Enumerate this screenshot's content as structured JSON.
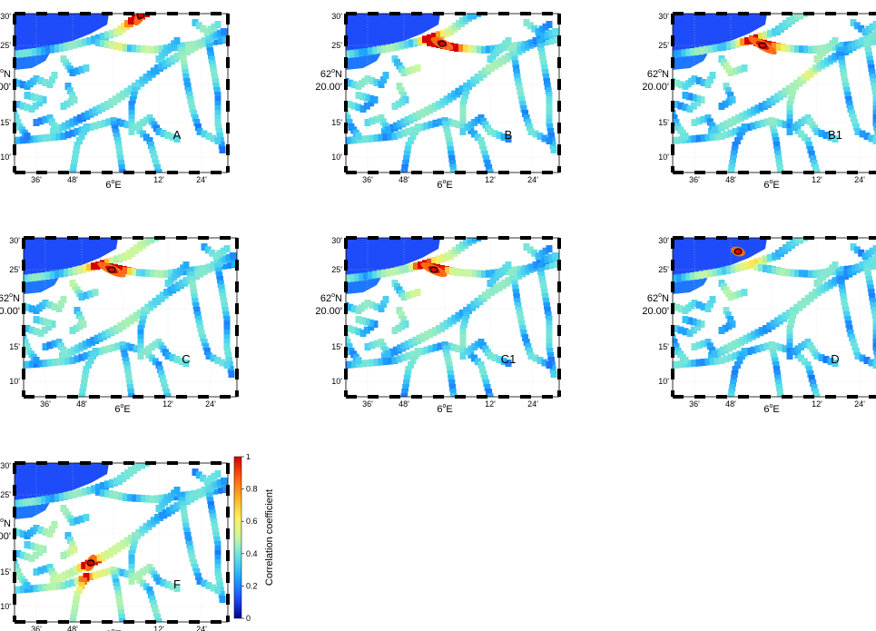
{
  "colorbar": {
    "label": "Correlation coefficient",
    "ticks": [
      "0",
      "0.2",
      "0.4",
      "0.6",
      "0.8",
      "1"
    ],
    "range": [
      0,
      1
    ],
    "colormap": "jet",
    "colors": [
      "#00008b",
      "#1f4fff",
      "#1ea7ff",
      "#5fe0e8",
      "#c9f7a0",
      "#ffef5a",
      "#ffb020",
      "#ff5a10",
      "#d40000"
    ]
  },
  "map": {
    "lat_ticks": [
      "30'",
      "25'",
      "15'",
      "10'"
    ],
    "lat_center_deg": "62",
    "lat_center_suffix": "N",
    "lat_center_min": "20.00'",
    "lon_ticks": [
      "36'",
      "48'",
      "12'",
      "24'"
    ],
    "lon_center_deg": "6",
    "lon_center_suffix": "E",
    "background_color": "#ffffff",
    "land_color": "#ffffff"
  },
  "panels": [
    {
      "label": "A",
      "hotspot": "upper-center (northern channel)",
      "max_r": 1.0
    },
    {
      "label": "B",
      "hotspot": "center-east (fjord junction)",
      "max_r": 1.0
    },
    {
      "label": "B1",
      "hotspot": "center-east (fjord junction)",
      "max_r": 1.0
    },
    {
      "label": "C",
      "hotspot": "center-east (fjord junction)",
      "max_r": 1.0
    },
    {
      "label": "C1",
      "hotspot": "center-east (fjord junction)",
      "max_r": 1.0
    },
    {
      "label": "D",
      "hotspot": "upper-center (north of junction)",
      "max_r": 1.0
    },
    {
      "label": "F",
      "hotspot": "lower-center (southern channel)",
      "max_r": 1.0
    }
  ]
}
